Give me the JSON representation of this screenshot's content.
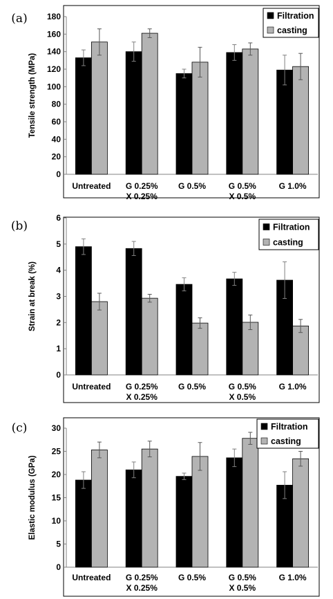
{
  "colors": {
    "filtration": "#000000",
    "casting": "#b3b3b3",
    "axis": "#808080",
    "frame": "#000000"
  },
  "chart_data": [
    {
      "type": "bar",
      "panel_label": "(a)",
      "ylabel": "Tensile strength (MPa)",
      "ylim": [
        0,
        180
      ],
      "yticks": [
        "0",
        "20",
        "40",
        "60",
        "80",
        "100",
        "120",
        "140",
        "160",
        "180"
      ],
      "categories": [
        "Untreated",
        "G 0.25%\nX 0.25%",
        "G 0.5%",
        "G 0.5%\nX 0.5%",
        "G 1.0%"
      ],
      "legend_position": "top-right",
      "series": [
        {
          "name": "Filtration",
          "values": [
            133,
            140,
            115,
            139,
            119
          ],
          "errors": [
            9,
            11,
            5,
            9,
            17
          ]
        },
        {
          "name": "casting",
          "values": [
            151,
            161,
            128,
            143,
            123
          ],
          "errors": [
            15,
            5,
            17,
            7,
            15
          ]
        }
      ]
    },
    {
      "type": "bar",
      "panel_label": "(b)",
      "ylabel": "Strain at break (%)",
      "ylim": [
        0,
        6
      ],
      "yticks": [
        "0",
        "1",
        "2",
        "3",
        "4",
        "5",
        "6"
      ],
      "categories": [
        "Untreated",
        "G 0.25%\nX 0.25%",
        "G 0.5%",
        "G 0.5%\nX 0.5%",
        "G 1.0%"
      ],
      "legend_position": "top-right",
      "series": [
        {
          "name": "Filtration",
          "values": [
            4.9,
            4.83,
            3.46,
            3.67,
            3.62
          ],
          "errors": [
            0.3,
            0.27,
            0.25,
            0.25,
            0.7
          ]
        },
        {
          "name": "casting",
          "values": [
            2.8,
            2.93,
            1.98,
            2.01,
            1.87
          ],
          "errors": [
            0.32,
            0.15,
            0.2,
            0.28,
            0.25
          ]
        }
      ]
    },
    {
      "type": "bar",
      "panel_label": "(c)",
      "ylabel": "Elastic modulus (GPa)",
      "ylim": [
        0,
        30
      ],
      "yticks": [
        "0",
        "5",
        "10",
        "15",
        "20",
        "25",
        "30"
      ],
      "categories": [
        "Untreated",
        "G 0.25%\nX 0.25%",
        "G 0.5%",
        "G 0.5%\nX 0.5%",
        "G 1.0%"
      ],
      "legend_position": "top-right",
      "series": [
        {
          "name": "Filtration",
          "values": [
            18.8,
            21.0,
            19.6,
            23.6,
            17.7
          ],
          "errors": [
            1.8,
            1.7,
            0.7,
            1.9,
            2.9
          ]
        },
        {
          "name": "casting",
          "values": [
            25.3,
            25.5,
            23.9,
            27.8,
            23.4
          ],
          "errors": [
            1.7,
            1.7,
            3.0,
            1.3,
            1.6
          ]
        }
      ]
    }
  ]
}
